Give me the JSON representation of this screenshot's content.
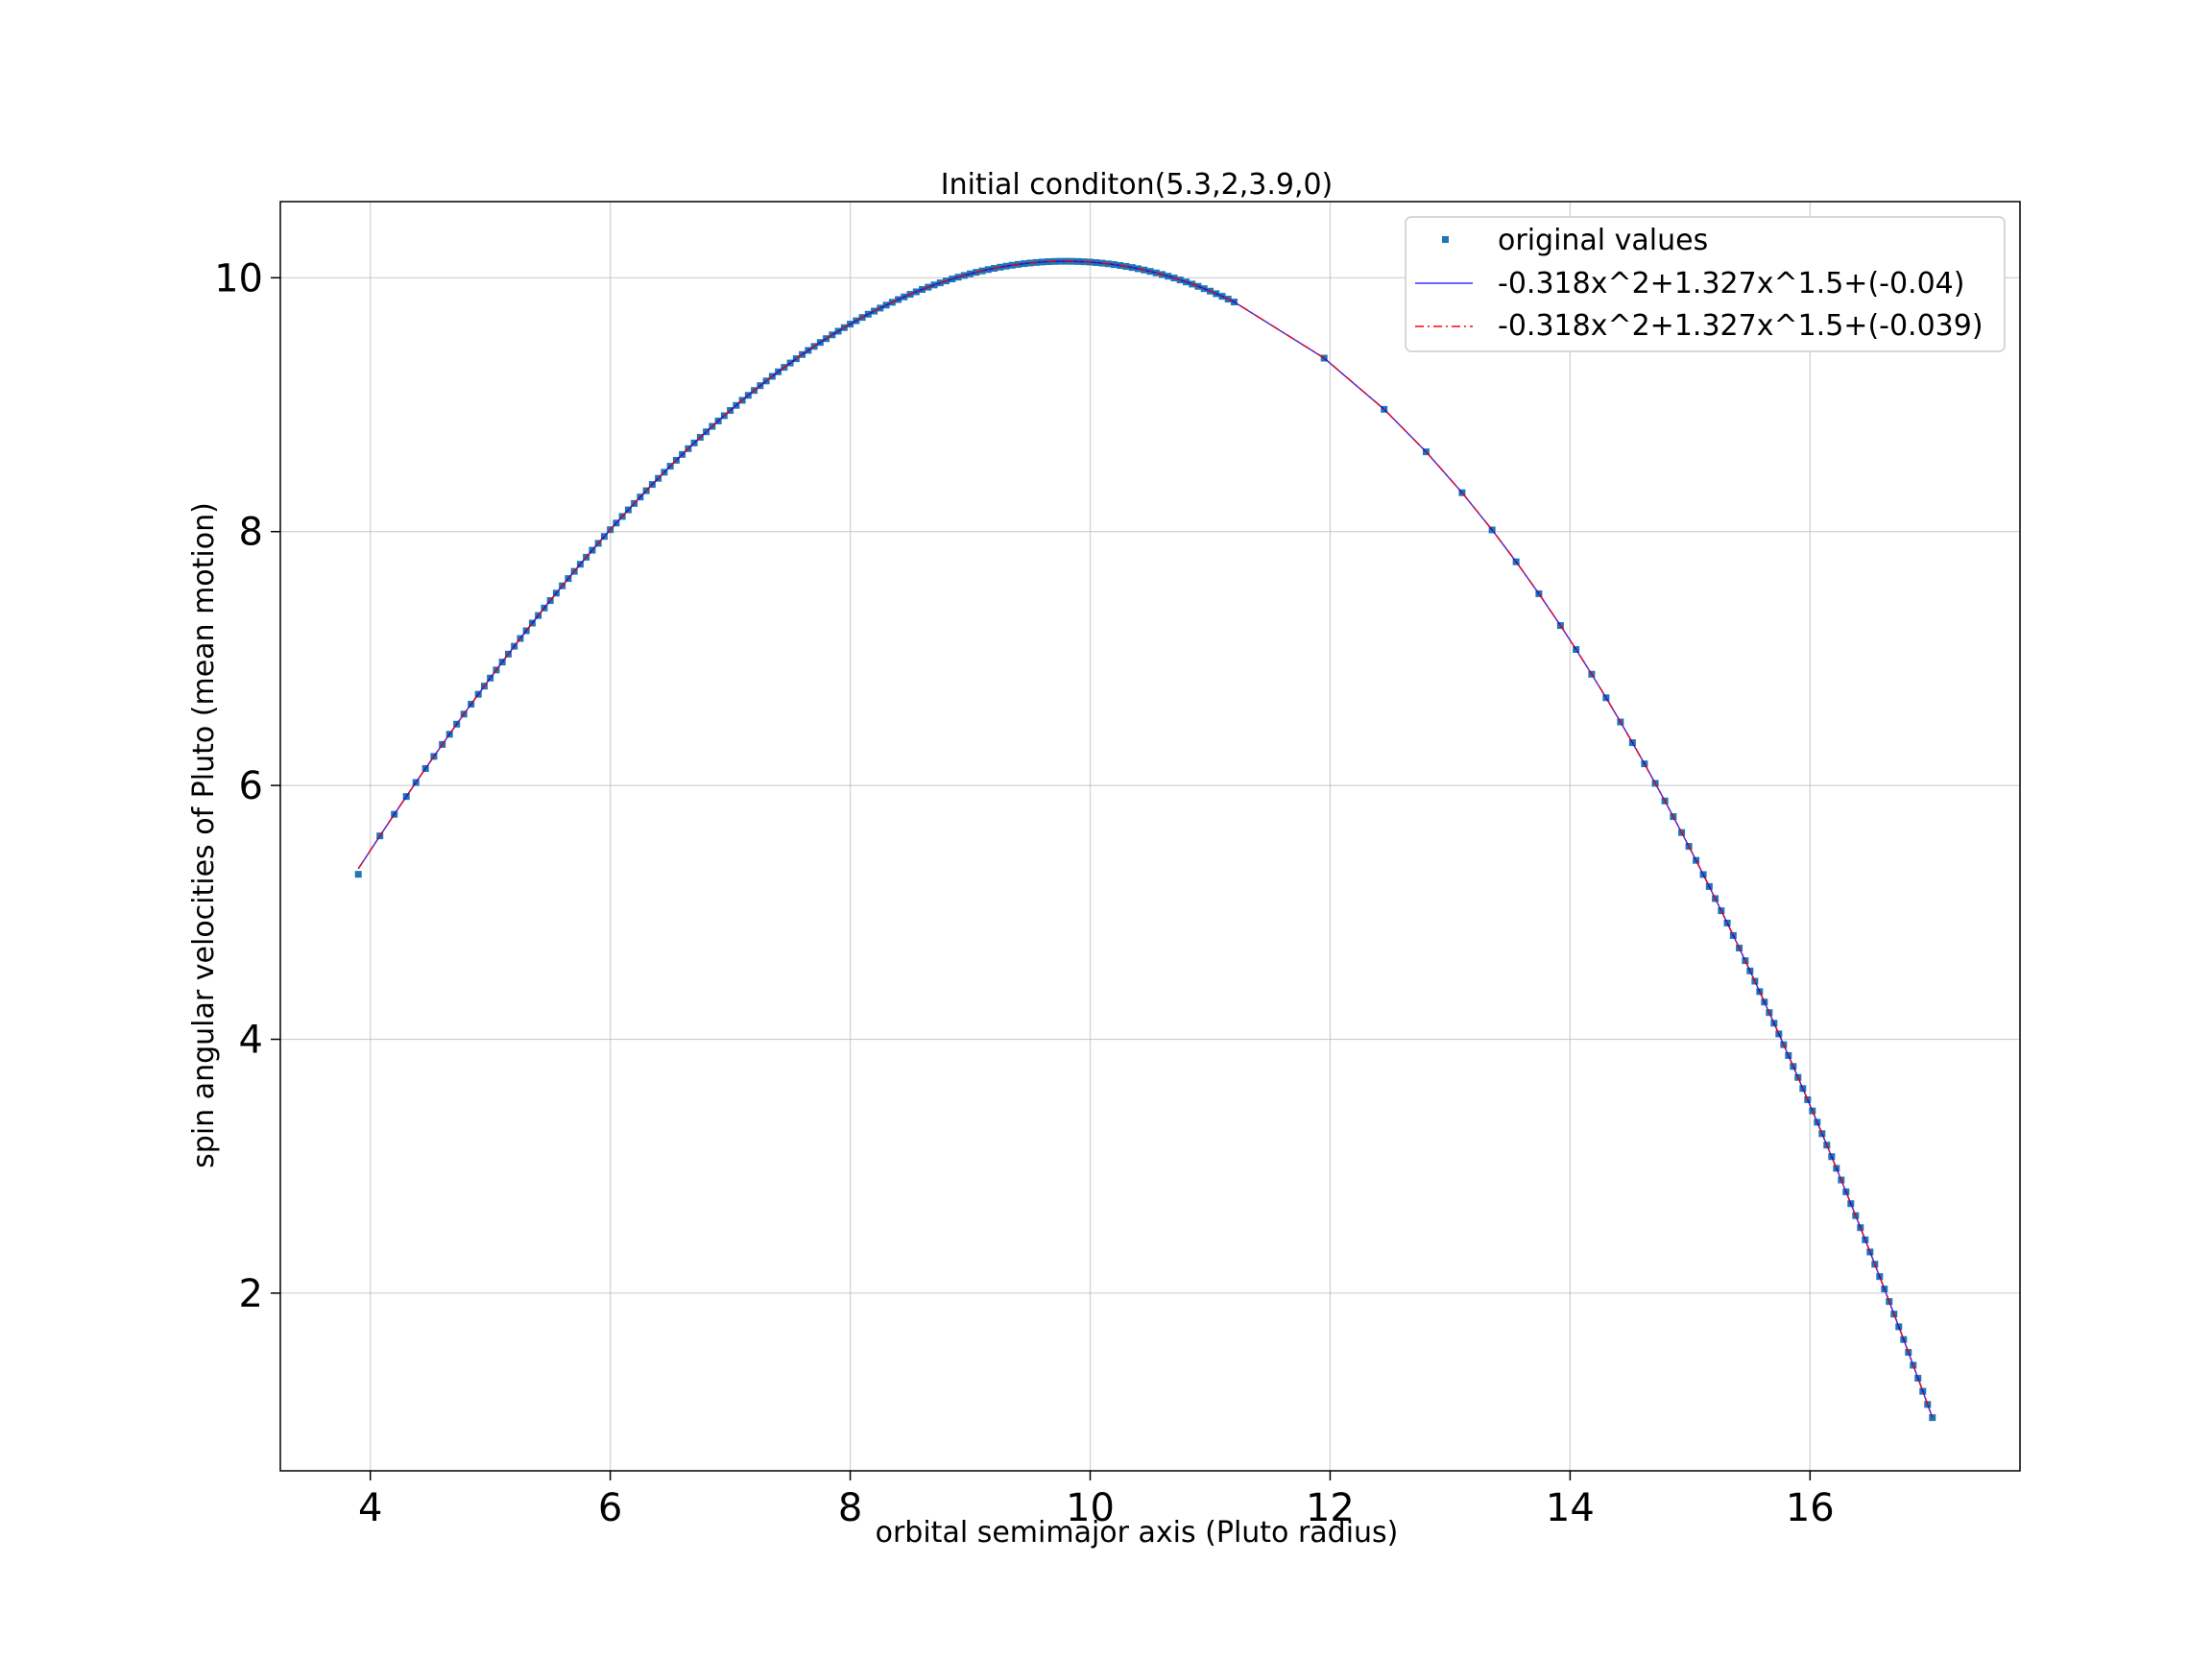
{
  "chart_data": {
    "type": "scatter",
    "title": "Initial conditon(5.3,2,3.9,0)",
    "xlabel": "orbital semimajor axis (Pluto radius)",
    "ylabel": "spin angular velocities of Pluto (mean motion)",
    "xlim": [
      3.25,
      17.75
    ],
    "ylim": [
      0.6,
      10.6
    ],
    "xticks": [
      4,
      6,
      8,
      10,
      12,
      14,
      16
    ],
    "yticks": [
      2,
      4,
      6,
      8,
      10
    ],
    "grid": true,
    "legend_position": "top-right",
    "colors": {
      "points": "#1f77b4",
      "fit1": "#0000ff",
      "fit2": "#ff0000"
    },
    "series": [
      {
        "name": "original values",
        "kind": "scatter",
        "x": [
          3.9,
          4.08,
          4.2,
          4.3,
          4.38,
          4.46,
          4.53,
          4.6,
          4.66,
          4.72,
          4.78,
          4.84,
          4.9,
          4.95,
          5.0,
          5.05,
          5.1,
          5.15,
          5.2,
          5.25,
          5.3,
          5.35,
          5.4,
          5.45,
          5.5,
          5.55,
          5.6,
          5.65,
          5.7,
          5.75,
          5.8,
          5.85,
          5.9,
          5.95,
          6.0,
          6.05,
          6.1,
          6.15,
          6.2,
          6.25,
          6.3,
          6.35,
          6.4,
          6.45,
          6.5,
          6.55,
          6.6,
          6.65,
          6.7,
          6.75,
          6.8,
          6.85,
          6.9,
          6.95,
          7.0,
          7.05,
          7.1,
          7.15,
          7.2,
          7.25,
          7.3,
          7.35,
          7.4,
          7.45,
          7.5,
          7.55,
          7.6,
          7.65,
          7.7,
          7.75,
          7.8,
          7.85,
          7.9,
          7.95,
          8.0,
          8.05,
          8.1,
          8.15,
          8.2,
          8.25,
          8.3,
          8.35,
          8.4,
          8.45,
          8.5,
          8.55,
          8.6,
          8.65,
          8.7,
          8.75,
          8.8,
          8.85,
          8.9,
          8.95,
          9.0,
          9.05,
          9.1,
          9.15,
          9.2,
          9.25,
          9.3,
          9.35,
          9.4,
          9.45,
          9.5,
          9.55,
          9.6,
          9.65,
          9.7,
          9.75,
          9.8,
          9.85,
          9.9,
          9.95,
          10.0,
          10.05,
          10.1,
          10.15,
          10.2,
          10.25,
          10.3,
          10.35,
          10.4,
          10.45,
          10.5,
          10.55,
          10.6,
          10.65,
          10.7,
          10.75,
          10.8,
          10.85,
          10.9,
          10.95,
          11.0,
          11.05,
          11.1,
          11.15,
          11.2,
          11.95,
          12.45,
          12.8,
          13.1,
          13.35,
          13.55,
          13.74,
          13.92,
          14.05,
          14.18,
          14.3,
          14.42,
          14.52,
          14.62,
          14.71,
          14.79,
          14.86,
          14.93,
          14.99,
          15.05,
          15.11,
          15.16,
          15.21,
          15.26,
          15.31,
          15.36,
          15.41,
          15.46,
          15.5,
          15.54,
          15.58,
          15.62,
          15.66,
          15.7,
          15.74,
          15.78,
          15.82,
          15.86,
          15.9,
          15.94,
          15.98,
          16.02,
          16.06,
          16.1,
          16.14,
          16.18,
          16.22,
          16.26,
          16.3,
          16.34,
          16.38,
          16.42,
          16.46,
          16.5,
          16.54,
          16.58,
          16.62,
          16.66,
          16.7,
          16.74,
          16.78,
          16.82,
          16.86,
          16.9,
          16.94,
          16.98,
          17.02
        ],
        "y_from": "fit"
      },
      {
        "name": "-0.318x^2+1.327x^1.5+(-0.04)",
        "kind": "line",
        "coefficients": {
          "a": -0.318,
          "b": 1.327,
          "c": -0.04
        }
      },
      {
        "name": "-0.318x^2+1.327x^1.5+(-0.039)",
        "kind": "dashdot",
        "coefficients": {
          "a": -0.318,
          "b": 1.327,
          "c": -0.039
        }
      }
    ],
    "outlier_point": {
      "x": 3.9,
      "y": 5.3
    }
  }
}
